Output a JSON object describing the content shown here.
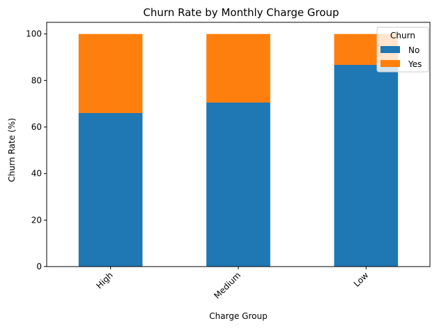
{
  "chart_data": {
    "type": "bar",
    "stacked": true,
    "title": "Churn Rate by Monthly Charge Group",
    "xlabel": "Charge Group",
    "ylabel": "Churn Rate (%)",
    "categories": [
      "High",
      "Medium",
      "Low"
    ],
    "series": [
      {
        "name": "No",
        "values": [
          66.0,
          70.5,
          86.7
        ],
        "color": "#1f77b4"
      },
      {
        "name": "Yes",
        "values": [
          34.0,
          29.5,
          13.3
        ],
        "color": "#ff7f0e"
      }
    ],
    "ylim": [
      0,
      105
    ],
    "yticks": [
      0,
      20,
      40,
      60,
      80,
      100
    ],
    "legend": {
      "title": "Churn",
      "position": "top-right"
    },
    "grid": false
  }
}
